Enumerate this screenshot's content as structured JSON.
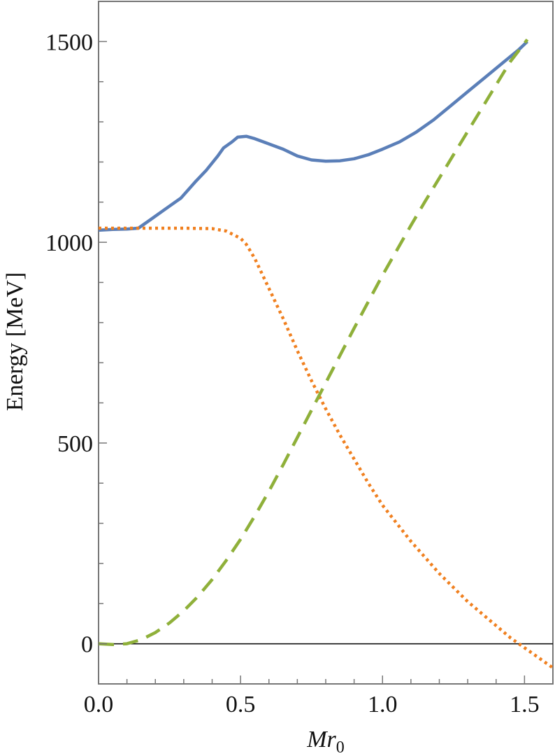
{
  "chart_data": {
    "type": "line",
    "title": "",
    "xlabel": "Mr",
    "xlabel_sub": "0",
    "ylabel": "Energy [MeV]",
    "xlim": [
      0.0,
      1.6
    ],
    "ylim": [
      -100,
      1600
    ],
    "xticks": [
      0.0,
      0.5,
      1.0,
      1.5
    ],
    "xtick_labels": [
      "0.0",
      "0.5",
      "1.0",
      "1.5"
    ],
    "yticks": [
      0,
      500,
      1000,
      1500
    ],
    "ytick_labels": [
      "0",
      "500",
      "1000",
      "1500"
    ],
    "grid": false,
    "legend": "none",
    "zero_line": true,
    "series": [
      {
        "color": "#5b7fb8",
        "dash": "solid",
        "x": [
          0.0,
          0.05,
          0.1,
          0.14,
          0.18,
          0.23,
          0.29,
          0.34,
          0.38,
          0.42,
          0.44,
          0.47,
          0.49,
          0.52,
          0.55,
          0.6,
          0.65,
          0.7,
          0.75,
          0.8,
          0.85,
          0.9,
          0.95,
          1.0,
          1.06,
          1.12,
          1.18,
          1.24,
          1.3,
          1.36,
          1.42,
          1.48,
          1.51
        ],
        "y": [
          1030,
          1032,
          1033,
          1035,
          1055,
          1080,
          1110,
          1150,
          1180,
          1215,
          1235,
          1250,
          1262,
          1264,
          1258,
          1245,
          1232,
          1215,
          1205,
          1202,
          1203,
          1208,
          1218,
          1232,
          1250,
          1275,
          1305,
          1340,
          1375,
          1410,
          1445,
          1480,
          1500
        ]
      },
      {
        "color": "#f08020",
        "dash": "dotted",
        "x": [
          0.0,
          0.1,
          0.2,
          0.3,
          0.4,
          0.45,
          0.5,
          0.52,
          0.55,
          0.6,
          0.65,
          0.7,
          0.75,
          0.8,
          0.85,
          0.9,
          0.95,
          1.0,
          1.05,
          1.1,
          1.15,
          1.2,
          1.25,
          1.3,
          1.35,
          1.4,
          1.45,
          1.5,
          1.55,
          1.6
        ],
        "y": [
          1035,
          1035,
          1035,
          1035,
          1034,
          1028,
          1010,
          995,
          960,
          885,
          810,
          730,
          655,
          585,
          520,
          460,
          400,
          345,
          300,
          255,
          215,
          175,
          140,
          105,
          75,
          45,
          15,
          -10,
          -35,
          -60
        ]
      },
      {
        "color": "#8fb03a",
        "dash": "dashed",
        "x": [
          0.0,
          0.05,
          0.1,
          0.15,
          0.2,
          0.25,
          0.3,
          0.35,
          0.4,
          0.45,
          0.5,
          0.55,
          0.6,
          0.65,
          0.7,
          0.75,
          0.8,
          0.85,
          0.9,
          0.95,
          1.0,
          1.05,
          1.1,
          1.15,
          1.2,
          1.25,
          1.3,
          1.35,
          1.4,
          1.45,
          1.51
        ],
        "y": [
          0,
          -2,
          0,
          10,
          28,
          52,
          82,
          118,
          160,
          208,
          260,
          318,
          380,
          446,
          514,
          582,
          650,
          718,
          786,
          852,
          918,
          980,
          1042,
          1102,
          1160,
          1218,
          1276,
          1334,
          1392,
          1450,
          1505
        ]
      }
    ]
  }
}
